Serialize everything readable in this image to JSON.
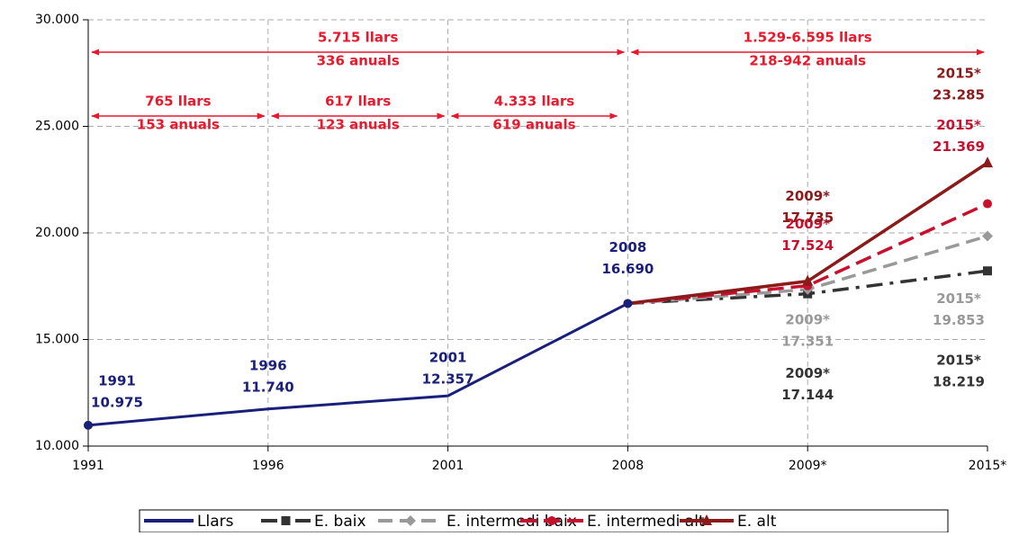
{
  "chart_data": {
    "type": "line",
    "categories": [
      "1991",
      "1996",
      "2001",
      "2008",
      "2009*",
      "2015*"
    ],
    "ylim": [
      10000,
      30000
    ],
    "yticks": [
      {
        "value": 10000,
        "label": "10.000"
      },
      {
        "value": 15000,
        "label": "15.000"
      },
      {
        "value": 20000,
        "label": "20.000"
      },
      {
        "value": 25000,
        "label": "25.000"
      },
      {
        "value": 30000,
        "label": "30.000"
      }
    ],
    "grid": true,
    "legend": "bottom",
    "series": [
      {
        "name": "Llars",
        "color": "#1a1f7a",
        "values": [
          10975,
          11740,
          12357,
          16690,
          null,
          null
        ],
        "value_labels": [
          "10.975",
          "11.740",
          "12.357",
          "16.690",
          null,
          null
        ]
      },
      {
        "name": "E. baix",
        "color": "#333333",
        "values": [
          null,
          null,
          null,
          16690,
          17144,
          18219
        ],
        "value_labels": [
          null,
          null,
          null,
          null,
          "17.144",
          "18.219"
        ]
      },
      {
        "name": "E. intermedi baix",
        "color": "#999999",
        "values": [
          null,
          null,
          null,
          16690,
          17351,
          19853
        ],
        "value_labels": [
          null,
          null,
          null,
          null,
          "17.351",
          "19.853"
        ]
      },
      {
        "name": "E. intermedi alt",
        "color": "#c8102e",
        "values": [
          null,
          null,
          null,
          16690,
          17524,
          21369
        ],
        "value_labels": [
          null,
          null,
          null,
          null,
          "17.524",
          "21.369"
        ]
      },
      {
        "name": "E. alt",
        "color": "#8b1a1a",
        "values": [
          null,
          null,
          null,
          16690,
          17735,
          23285
        ],
        "value_labels": [
          null,
          null,
          null,
          null,
          "17.735",
          "23.285"
        ]
      }
    ],
    "annotations": [
      {
        "lines": [
          "5.715 llars",
          "336 anuals"
        ]
      },
      {
        "lines": [
          "1.529-6.595 llars",
          "218-942 anuals"
        ]
      },
      {
        "lines": [
          "765 llars",
          "153 anuals"
        ]
      },
      {
        "lines": [
          "617 llars",
          "123 anuals"
        ]
      },
      {
        "lines": [
          "4.333 llars",
          "619 anuals"
        ]
      }
    ],
    "annotation_color": "#e8192c"
  }
}
